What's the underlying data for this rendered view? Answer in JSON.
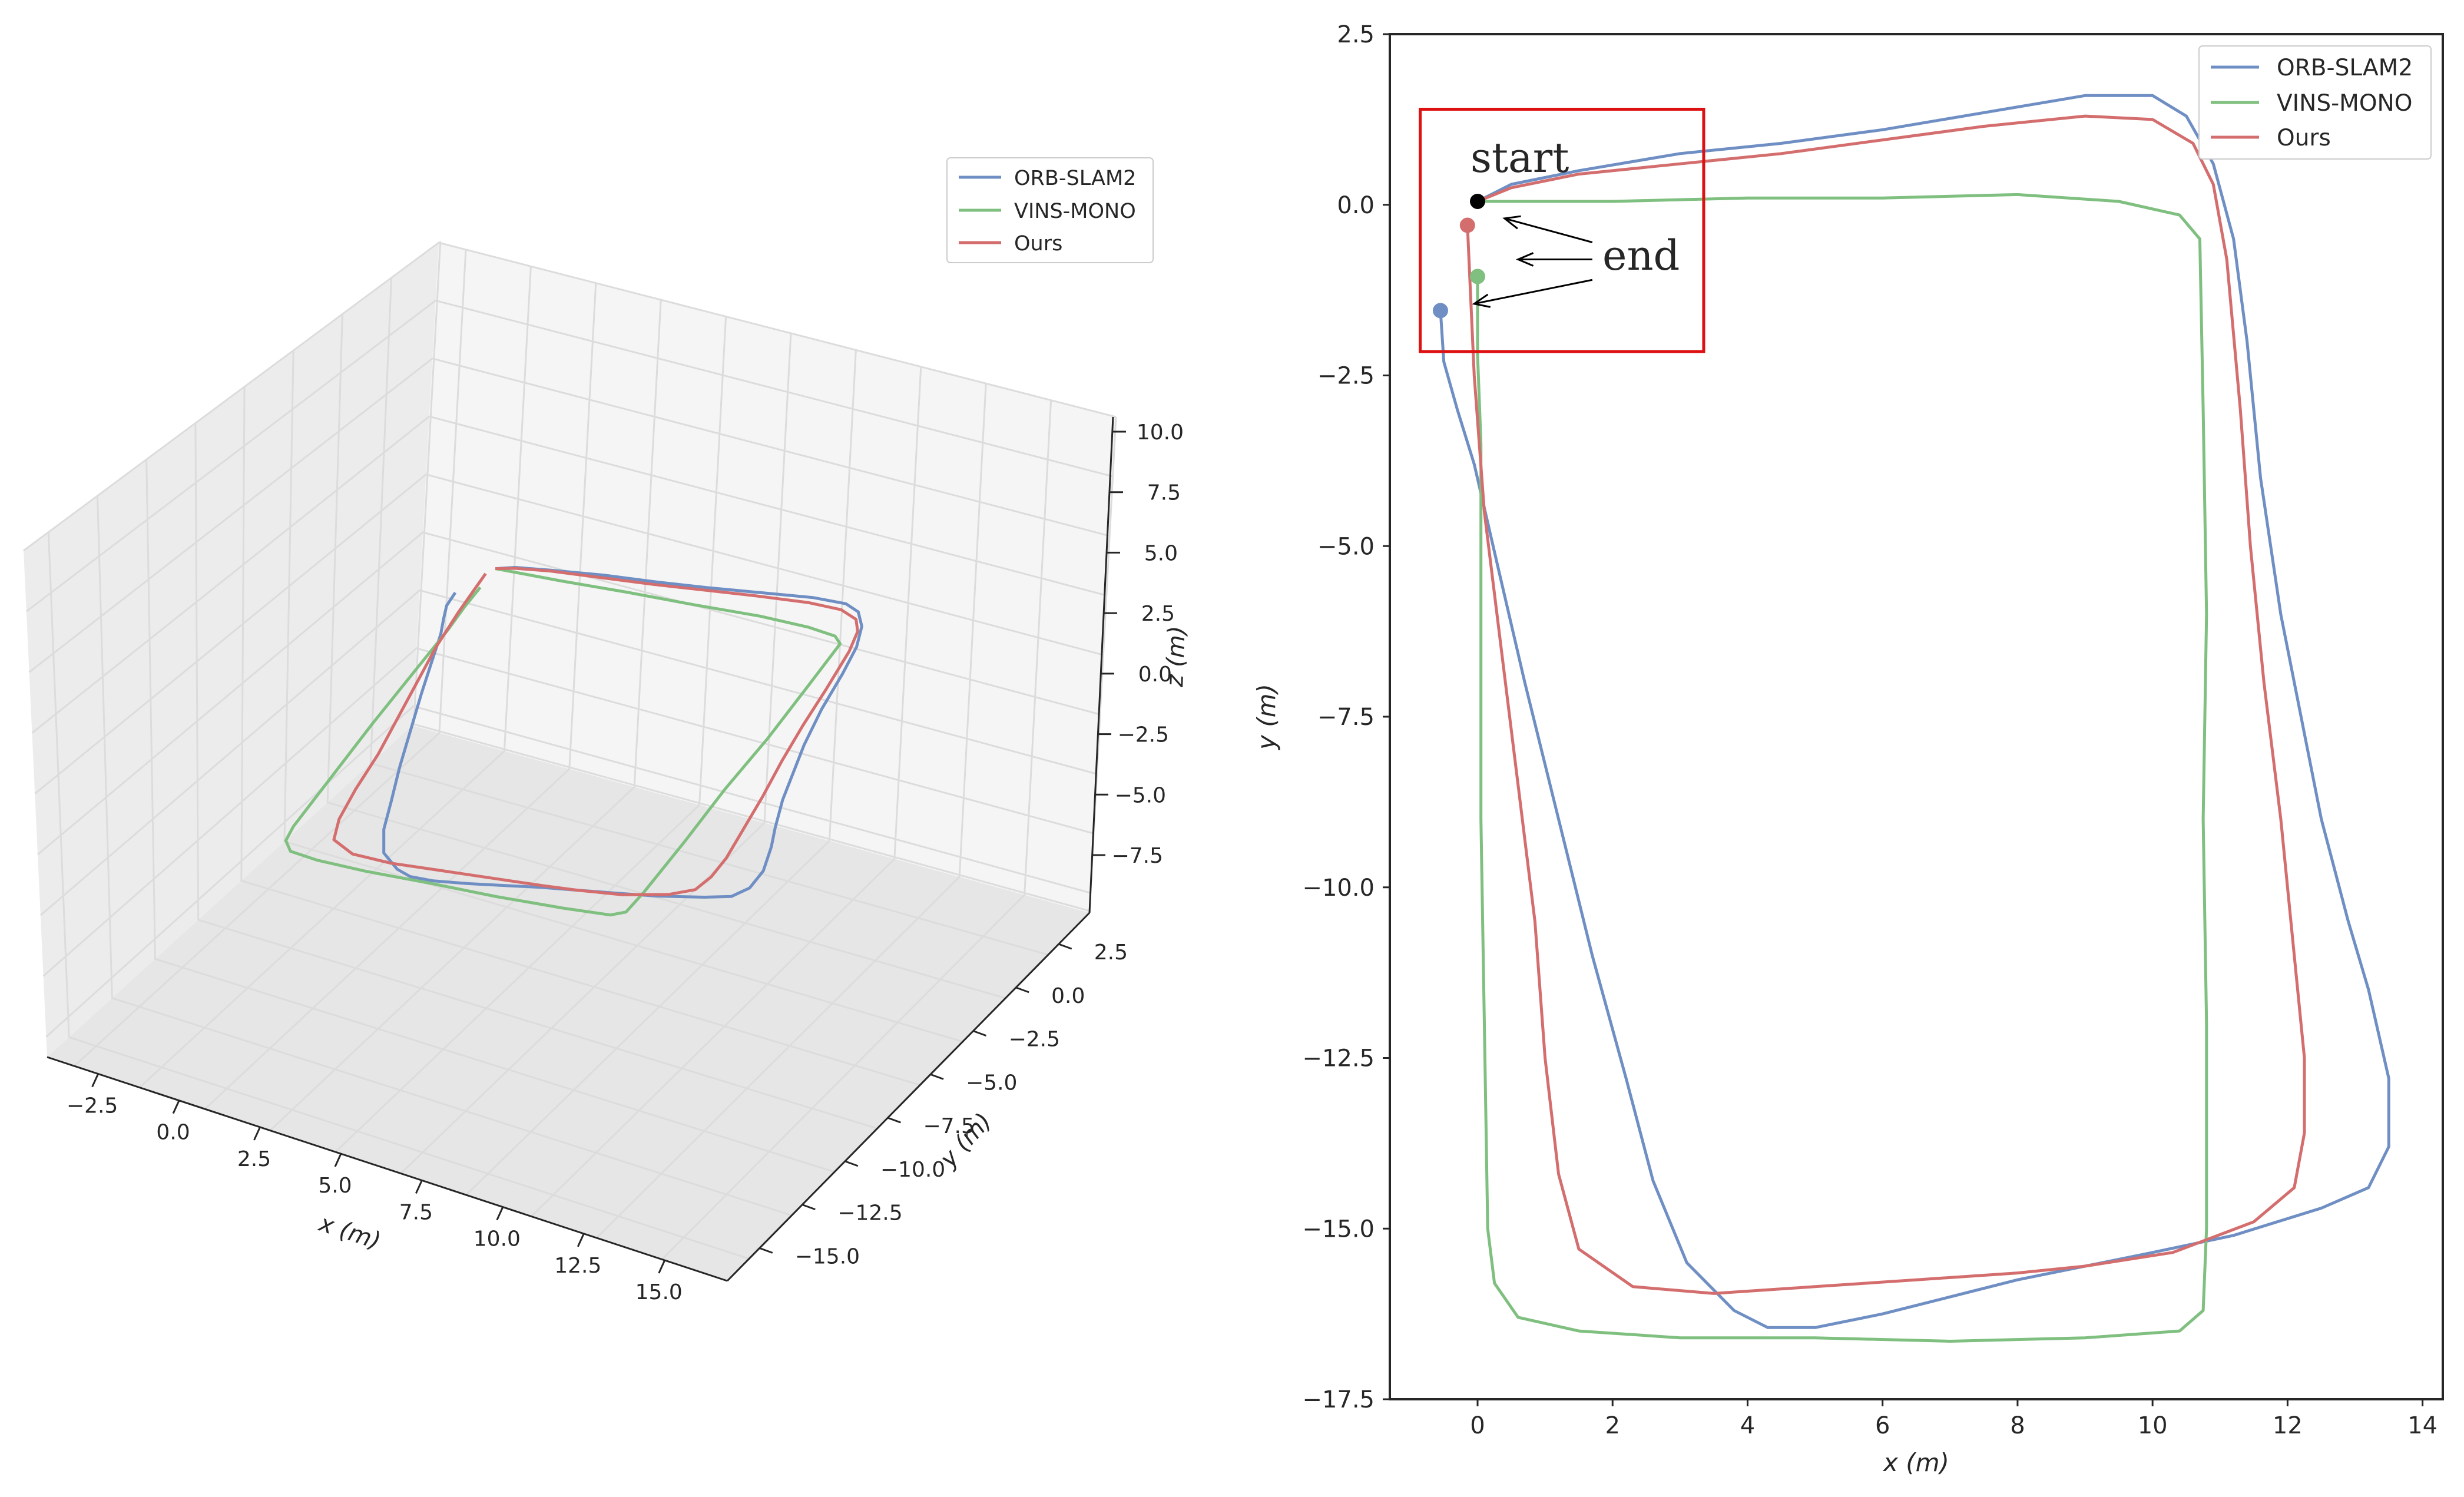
{
  "colors": {
    "orb": "#6f8fc4",
    "vins": "#7fbf7f",
    "ours": "#d46e6e",
    "start": "#000000",
    "box": "#dd1111",
    "axis": "#262626",
    "grid3d": "#dcdcdc",
    "pane_back": "#f5f5f5",
    "pane_side": "#ececec",
    "pane_floor": "#e6e6e6"
  },
  "chart_data": [
    {
      "type": "line3d",
      "title": "",
      "xlabel": "x (m)",
      "ylabel": "y (m)",
      "zlabel": "z (m)",
      "xlim": [
        -4,
        17
      ],
      "ylim": [
        -17,
        3
      ],
      "zlim": [
        -10,
        11
      ],
      "xticks": [
        "−2.5",
        "0.0",
        "2.5",
        "5.0",
        "7.5",
        "10.0",
        "12.5",
        "15.0"
      ],
      "yticks": [
        "2.5",
        "0.0",
        "−2.5",
        "−5.0",
        "−7.5",
        "−10.0",
        "−12.5",
        "−15.0"
      ],
      "zticks": [
        "10.0",
        "7.5",
        "5.0",
        "2.5",
        "0.0",
        "−2.5",
        "−5.0",
        "−7.5"
      ],
      "legend_position": "top-right",
      "legend": [
        "ORB-SLAM2",
        "VINS-MONO",
        "Ours"
      ]
    },
    {
      "type": "line",
      "title": "",
      "xlabel": "x (m)",
      "ylabel": "y (m)",
      "xlim": [
        -1.3,
        14.3
      ],
      "ylim": [
        -17.5,
        2.5
      ],
      "xticks": [
        "0",
        "2",
        "4",
        "6",
        "8",
        "10",
        "12",
        "14"
      ],
      "yticks": [
        "2.5",
        "0.0",
        "−2.5",
        "−5.0",
        "−7.5",
        "−10.0",
        "−12.5",
        "−15.0",
        "−17.5"
      ],
      "legend_position": "top-right",
      "annotations": {
        "start": "start",
        "end": "end"
      },
      "start_point": [
        0,
        0.05
      ],
      "end_points": {
        "ORB-SLAM2": [
          -0.55,
          -1.55
        ],
        "VINS-MONO": [
          0.0,
          -1.05
        ],
        "Ours": [
          -0.15,
          -0.3
        ]
      },
      "highlight_box": {
        "x": [
          -0.85,
          3.35
        ],
        "y": [
          -2.15,
          1.4
        ]
      },
      "series": [
        {
          "name": "ORB-SLAM2",
          "points": [
            [
              0,
              0.05
            ],
            [
              0.5,
              0.3
            ],
            [
              1.5,
              0.5
            ],
            [
              3,
              0.75
            ],
            [
              4.5,
              0.9
            ],
            [
              6,
              1.1
            ],
            [
              7.5,
              1.35
            ],
            [
              9,
              1.6
            ],
            [
              10,
              1.6
            ],
            [
              10.5,
              1.3
            ],
            [
              10.9,
              0.6
            ],
            [
              11.2,
              -0.5
            ],
            [
              11.4,
              -2
            ],
            [
              11.6,
              -4
            ],
            [
              11.9,
              -6
            ],
            [
              12.2,
              -7.5
            ],
            [
              12.5,
              -9
            ],
            [
              12.9,
              -10.5
            ],
            [
              13.2,
              -11.5
            ],
            [
              13.5,
              -12.8
            ],
            [
              13.5,
              -13.8
            ],
            [
              13.2,
              -14.4
            ],
            [
              12.5,
              -14.7
            ],
            [
              11.2,
              -15.1
            ],
            [
              10,
              -15.35
            ],
            [
              9,
              -15.55
            ],
            [
              8,
              -15.75
            ],
            [
              7,
              -16
            ],
            [
              6,
              -16.25
            ],
            [
              5,
              -16.45
            ],
            [
              4.3,
              -16.45
            ],
            [
              3.8,
              -16.2
            ],
            [
              3.1,
              -15.5
            ],
            [
              2.6,
              -14.3
            ],
            [
              2.2,
              -12.8
            ],
            [
              1.7,
              -11
            ],
            [
              1.2,
              -9
            ],
            [
              0.7,
              -7
            ],
            [
              0.3,
              -5.3
            ],
            [
              -0.05,
              -3.8
            ],
            [
              -0.3,
              -3
            ],
            [
              -0.5,
              -2.3
            ],
            [
              -0.55,
              -1.55
            ]
          ]
        },
        {
          "name": "VINS-MONO",
          "points": [
            [
              0,
              0.05
            ],
            [
              1,
              0.05
            ],
            [
              2,
              0.05
            ],
            [
              4,
              0.1
            ],
            [
              6,
              0.1
            ],
            [
              8,
              0.15
            ],
            [
              9.5,
              0.05
            ],
            [
              10.4,
              -0.15
            ],
            [
              10.7,
              -0.5
            ],
            [
              10.75,
              -3
            ],
            [
              10.8,
              -6
            ],
            [
              10.75,
              -9
            ],
            [
              10.8,
              -12
            ],
            [
              10.8,
              -15
            ],
            [
              10.75,
              -16.2
            ],
            [
              10.4,
              -16.5
            ],
            [
              9,
              -16.6
            ],
            [
              7,
              -16.65
            ],
            [
              5,
              -16.6
            ],
            [
              3,
              -16.6
            ],
            [
              1.5,
              -16.5
            ],
            [
              0.6,
              -16.3
            ],
            [
              0.25,
              -15.8
            ],
            [
              0.15,
              -15
            ],
            [
              0.1,
              -12
            ],
            [
              0.05,
              -9
            ],
            [
              0.05,
              -6
            ],
            [
              0.05,
              -3.5
            ],
            [
              0,
              -2.2
            ],
            [
              0,
              -1.4
            ],
            [
              0,
              -1.05
            ]
          ]
        },
        {
          "name": "Ours",
          "points": [
            [
              0,
              0.05
            ],
            [
              0.5,
              0.25
            ],
            [
              1.5,
              0.45
            ],
            [
              3,
              0.6
            ],
            [
              4.5,
              0.75
            ],
            [
              6,
              0.95
            ],
            [
              7.5,
              1.15
            ],
            [
              9,
              1.3
            ],
            [
              10,
              1.25
            ],
            [
              10.6,
              0.9
            ],
            [
              10.9,
              0.3
            ],
            [
              11.1,
              -0.8
            ],
            [
              11.3,
              -3
            ],
            [
              11.45,
              -5
            ],
            [
              11.65,
              -7
            ],
            [
              11.9,
              -9
            ],
            [
              12.1,
              -11
            ],
            [
              12.25,
              -12.5
            ],
            [
              12.25,
              -13.6
            ],
            [
              12.1,
              -14.4
            ],
            [
              11.5,
              -14.9
            ],
            [
              10.3,
              -15.35
            ],
            [
              9,
              -15.55
            ],
            [
              8,
              -15.65
            ],
            [
              6.5,
              -15.75
            ],
            [
              5,
              -15.85
            ],
            [
              3.5,
              -15.95
            ],
            [
              2.3,
              -15.85
            ],
            [
              1.5,
              -15.3
            ],
            [
              1.2,
              -14.2
            ],
            [
              1,
              -12.5
            ],
            [
              0.85,
              -10.5
            ],
            [
              0.6,
              -8.5
            ],
            [
              0.35,
              -6.5
            ],
            [
              0.1,
              -4.5
            ],
            [
              -0.05,
              -2.5
            ],
            [
              -0.1,
              -1.4
            ],
            [
              -0.15,
              -0.3
            ]
          ]
        }
      ],
      "legend": [
        "ORB-SLAM2",
        "VINS-MONO",
        "Ours"
      ]
    }
  ]
}
